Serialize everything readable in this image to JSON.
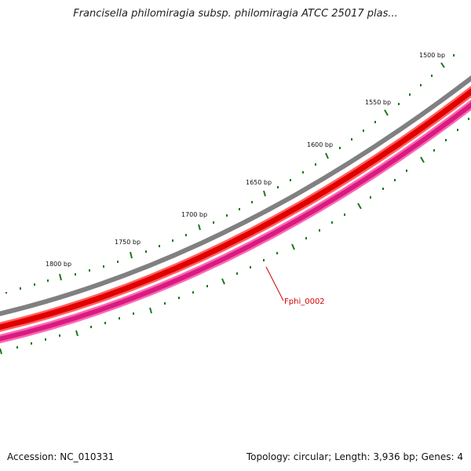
{
  "title": "Francisella philomiragia subsp. philomiragia ATCC 25017 plas...",
  "accession_text": "Accession: NC_010331",
  "summary_text": "Topology: circular; Length: 3,936 bp; Genes: 4",
  "ticks": [
    {
      "label": "1500 bp"
    },
    {
      "label": "1550 bp"
    },
    {
      "label": "1600 bp"
    },
    {
      "label": "1650 bp"
    },
    {
      "label": "1700 bp"
    },
    {
      "label": "1750 bp"
    },
    {
      "label": "1800 bp"
    }
  ],
  "feature": {
    "label": "Fphi_0002",
    "color": "#d00000"
  },
  "colors": {
    "outer_ring": "#808080",
    "red_band": "#e60000",
    "pink_band": "#e8358f",
    "tick": "#1a7a1a"
  }
}
